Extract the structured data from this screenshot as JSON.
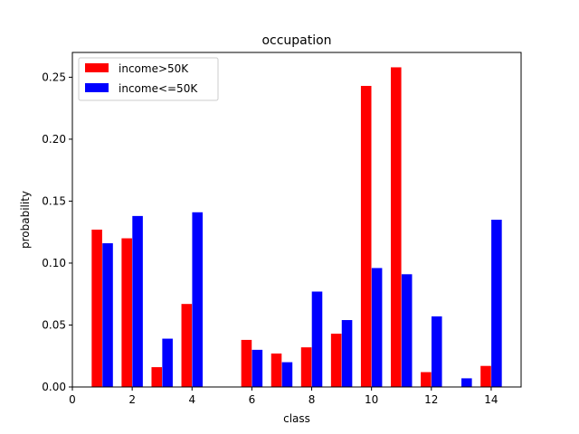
{
  "chart_data": {
    "type": "bar",
    "title": "occupation",
    "xlabel": "class",
    "ylabel": "probability",
    "xlim": [
      0,
      15
    ],
    "ylim": [
      0,
      0.27
    ],
    "xticks": [
      0,
      2,
      4,
      6,
      8,
      10,
      12,
      14
    ],
    "yticks": [
      0.0,
      0.05,
      0.1,
      0.15,
      0.2,
      0.25
    ],
    "legend_position": "top-left",
    "grid": false,
    "series": [
      {
        "name": "income>50K",
        "color": "#ff0000",
        "x": [
          1,
          2,
          3,
          4,
          6,
          7,
          8,
          9,
          10,
          11,
          12,
          14
        ],
        "values": [
          0.127,
          0.12,
          0.016,
          0.067,
          0.038,
          0.027,
          0.032,
          0.043,
          0.243,
          0.258,
          0.012,
          0.017
        ]
      },
      {
        "name": "income<=50K",
        "color": "#0000ff",
        "x": [
          1,
          2,
          3,
          4,
          6,
          7,
          8,
          9,
          10,
          11,
          12,
          13,
          14
        ],
        "values": [
          0.116,
          0.138,
          0.039,
          0.141,
          0.03,
          0.02,
          0.077,
          0.054,
          0.096,
          0.091,
          0.057,
          0.007,
          0.135
        ]
      }
    ]
  }
}
